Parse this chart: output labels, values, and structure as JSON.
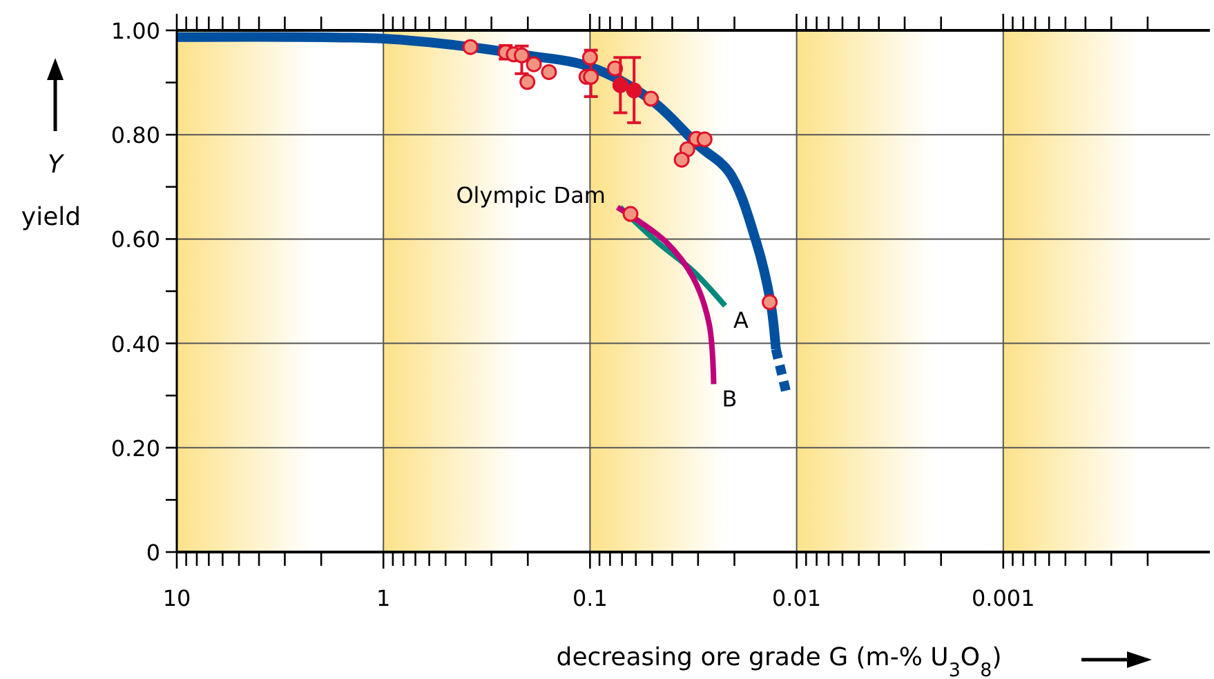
{
  "chart_data": {
    "type": "line",
    "xlabel": "decreasing ore grade G (m-% U$_{3}$O$_{8}$)",
    "ylabel": "Y yield",
    "log": "x",
    "grid": true,
    "legend": false,
    "xlim": [
      10,
      0.0001
    ],
    "ylim": [
      0,
      1
    ],
    "xticks": [
      10,
      {
        "value": 9,
        "label": null
      },
      {
        "value": 8,
        "label": null
      },
      {
        "value": 7,
        "label": null
      },
      {
        "value": 6,
        "label": null
      },
      {
        "value": 5,
        "label": null
      },
      {
        "value": 4,
        "label": null
      },
      {
        "value": 3,
        "label": null
      },
      {
        "value": 2,
        "label": null
      },
      1,
      {
        "value": 0.9,
        "label": null
      },
      {
        "value": 0.8,
        "label": null
      },
      {
        "value": 0.7,
        "label": null
      },
      {
        "value": 0.6,
        "label": null
      },
      {
        "value": 0.5,
        "label": null
      },
      {
        "value": 0.4,
        "label": null
      },
      {
        "value": 0.3,
        "label": null
      },
      {
        "value": 0.2,
        "label": null
      },
      0.1,
      {
        "value": 0.09,
        "label": null
      },
      {
        "value": 0.08,
        "label": null
      },
      {
        "value": 0.07,
        "label": null
      },
      {
        "value": 0.06,
        "label": null
      },
      {
        "value": 0.05,
        "label": null
      },
      {
        "value": 0.04,
        "label": null
      },
      {
        "value": 0.03,
        "label": null
      },
      {
        "value": 0.02,
        "label": null
      },
      0.01,
      {
        "value": 0.009,
        "label": null
      },
      {
        "value": 0.008,
        "label": null
      },
      {
        "value": 0.007,
        "label": null
      },
      {
        "value": 0.006,
        "label": null
      },
      {
        "value": 0.005,
        "label": null
      },
      {
        "value": 0.004,
        "label": null
      },
      {
        "value": 0.003,
        "label": null
      },
      {
        "value": 0.002,
        "label": null
      },
      0.001,
      {
        "value": 0.0009,
        "label": null
      },
      {
        "value": 0.0008,
        "label": null
      },
      {
        "value": 0.0007,
        "label": null
      },
      {
        "value": 0.0006,
        "label": null
      },
      {
        "value": 0.0005,
        "label": null
      },
      {
        "value": 0.0004,
        "label": null
      },
      {
        "value": 0.0003,
        "label": null
      },
      {
        "value": 0.0002,
        "label": null
      }
    ],
    "yticks": [
      0,
      {
        "value": 0.1,
        "label": null
      },
      {
        "value": 0.2,
        "label": "0.20"
      },
      {
        "value": 0.3,
        "label": null
      },
      {
        "value": 0.4,
        "label": "0.40"
      },
      {
        "value": 0.5,
        "label": null
      },
      {
        "value": 0.6,
        "label": "0.60"
      },
      {
        "value": 0.7,
        "label": null
      },
      {
        "value": 0.8,
        "label": "0.80"
      },
      {
        "value": 0.9,
        "label": null
      },
      {
        "value": 1,
        "label": "1.00"
      }
    ],
    "series": [
      {
        "color": "#0050a0",
        "line_style": "solid",
        "x": [
          10,
          1,
          0.379,
          0.2,
          0.1,
          0.05,
          0.03,
          0.0212,
          0.0157,
          0.0134,
          0.0126
        ],
        "values": [
          0.987,
          0.984,
          0.968,
          0.952,
          0.93,
          0.865,
          0.78,
          0.728,
          0.595,
          0.481,
          0.389
        ]
      },
      {
        "color": "#0050a0",
        "line_style": "dashed",
        "x": [
          0.0126,
          0.0112
        ],
        "values": [
          0.389,
          0.304
        ]
      },
      {
        "name": "A",
        "color": "#00897b",
        "line_style": "solid",
        "x": [
          0.0716,
          0.0475,
          0.0316,
          0.0222
        ],
        "values": [
          0.661,
          0.595,
          0.538,
          0.472
        ]
      },
      {
        "name": "B",
        "color": "#c0007a",
        "line_style": "solid",
        "x": [
          0.0737,
          0.043,
          0.0316,
          0.0265,
          0.0252
        ],
        "values": [
          0.661,
          0.595,
          0.525,
          0.437,
          0.322
        ]
      },
      {
        "type": "scatter",
        "color": "#f29580",
        "marker": "circle",
        "x": [
          0.379,
          0.256,
          0.234,
          0.214,
          0.201,
          0.187,
          0.158,
          0.1,
          0.104,
          0.099,
          0.0757,
          0.0507,
          0.0306,
          0.0279,
          0.0338,
          0.036,
          0.0135,
          0.0637
        ],
        "values": [
          0.968,
          0.958,
          0.954,
          0.952,
          0.901,
          0.935,
          0.92,
          0.948,
          0.911,
          0.911,
          0.927,
          0.869,
          0.792,
          0.791,
          0.772,
          0.752,
          0.479,
          0.648
        ],
        "errors": [
          null,
          0.013,
          null,
          [
            0.917,
            0.97
          ],
          null,
          null,
          null,
          null,
          null,
          [
            0.873,
            0.962
          ],
          null,
          null,
          null,
          null,
          null,
          null,
          null,
          null
        ]
      },
      {
        "type": "scatter",
        "color": "#e0102a",
        "marker": "circle",
        "x": [
          0.0713,
          0.0612
        ],
        "values": [
          0.895,
          0.885
        ],
        "errors": [
          [
            0.842,
            0.948
          ],
          [
            0.823,
            0.948
          ]
        ]
      }
    ],
    "annotations": [
      {
        "text": "Olympic Dam",
        "x": 0.0637,
        "y": 0.648
      }
    ]
  }
}
